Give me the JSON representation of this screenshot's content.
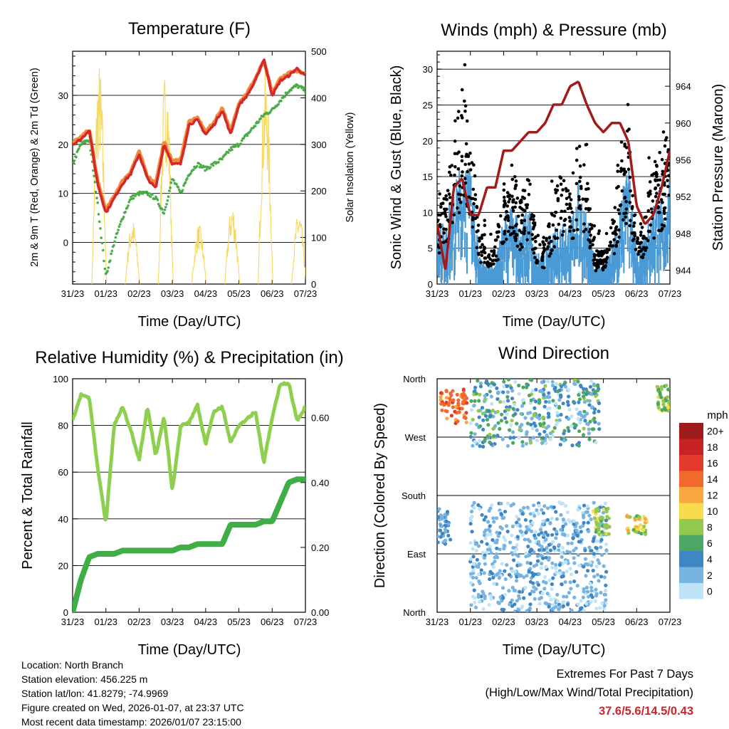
{
  "x_tick_labels": [
    "31/23",
    "01/23",
    "02/23",
    "03/23",
    "04/23",
    "05/23",
    "06/23",
    "07/23"
  ],
  "x_axis_label": "Time (Day/UTC)",
  "colors": {
    "temp_2m": "#d62828",
    "temp_9m": "#f08a3c",
    "dewpoint": "#4aad48",
    "solar": "#f6d860",
    "wind_sonic": "#4a9ad6",
    "gust": "#000000",
    "pressure": "#a11b1b",
    "rh": "#8ecf50",
    "precip": "#3fae46"
  },
  "panels": {
    "temperature": {
      "title": "Temperature (F)",
      "left_label": "2m & 9m T (Red, Orange) & 2m Td (Green)",
      "right_label": "Solar Insolation (Yellow)",
      "left_ticks": [
        "0",
        "10",
        "20",
        "30"
      ],
      "right_ticks": [
        "0",
        "100",
        "200",
        "300",
        "400",
        "500"
      ]
    },
    "winds": {
      "title": "Winds (mph) & Pressure (mb)",
      "left_label": "Sonic Wind & Gust (Blue, Black)",
      "right_label": "Station Pressure (Maroon)",
      "left_ticks": [
        "0",
        "5",
        "10",
        "15",
        "20",
        "25",
        "30"
      ],
      "right_ticks": [
        "944",
        "948",
        "952",
        "956",
        "960",
        "964"
      ]
    },
    "humidity": {
      "title": "Relative Humidity (%) & Precipitation (in)",
      "left_label": "Percent & Total Rainfall",
      "left_ticks": [
        "0",
        "20",
        "40",
        "60",
        "80",
        "100"
      ],
      "right_ticks": [
        "0.00",
        "0.20",
        "0.40",
        "0.60"
      ]
    },
    "direction": {
      "title": "Wind Direction",
      "left_label": "Direction (Colored By Speed)",
      "left_ticks": [
        "North",
        "East",
        "South",
        "West",
        "North"
      ]
    }
  },
  "legend": {
    "unit": "mph",
    "labels": [
      "20+",
      "18",
      "16",
      "14",
      "12",
      "10",
      "8",
      "6",
      "4",
      "2",
      "0"
    ],
    "colors": [
      "#9e1b1b",
      "#c72323",
      "#e33a2c",
      "#f2692e",
      "#f8a640",
      "#f7dc4c",
      "#93c94f",
      "#4ca764",
      "#3e86c4",
      "#78b4e2",
      "#bfe4f8"
    ]
  },
  "info": {
    "location": "Location: North Branch",
    "elevation": "Station elevation: 456.225 m",
    "latlon": "Station lat/lon: 41.8279; -74.9969",
    "created": "Figure created on Wed, 2026-01-07, at 23:37 UTC",
    "recent": "Most recent data timestamp: 2026/01/07 23:15:00"
  },
  "extremes": {
    "title": "Extremes For Past 7 Days",
    "subtitle": "(High/Low/Max Wind/Total Precipitation)",
    "values": "37.6/5.6/14.5/0.43"
  },
  "chart_data": [
    {
      "type": "line",
      "title": "Temperature (F)",
      "xlabel": "Time (Day/UTC)",
      "ylabel": "2m & 9m T (Red, Orange) & 2m Td (Green)",
      "ylabel_right": "Solar Insolation (Yellow)",
      "x": [
        0,
        0.25,
        0.5,
        0.75,
        1,
        1.25,
        1.5,
        1.75,
        2,
        2.25,
        2.5,
        2.75,
        3,
        3.25,
        3.5,
        3.75,
        4,
        4.25,
        4.5,
        4.75,
        5,
        5.25,
        5.5,
        5.75,
        6,
        6.25,
        6.5,
        6.75,
        7
      ],
      "xlim": [
        0,
        7
      ],
      "ylim": [
        -8.5,
        39
      ],
      "ylim_right": [
        0,
        500
      ],
      "series": [
        {
          "name": "2m T",
          "values": [
            20,
            21,
            23,
            12,
            6,
            9,
            12,
            14,
            18,
            13,
            11,
            20,
            16,
            16,
            24,
            25,
            22,
            24,
            27,
            22,
            28,
            30,
            33,
            37.5,
            30,
            33,
            34,
            35.5,
            34
          ]
        },
        {
          "name": "9m T",
          "values": [
            20.3,
            21.5,
            23,
            12.5,
            6.5,
            9.5,
            12.5,
            14.5,
            18.5,
            13.5,
            12,
            20.5,
            16.5,
            17,
            24.5,
            25.5,
            22.5,
            24.5,
            27.5,
            22.5,
            28.5,
            30.5,
            33.5,
            37,
            30.5,
            33.5,
            34.5,
            35,
            34.5
          ]
        },
        {
          "name": "2m Td",
          "values": [
            16,
            20,
            21,
            8,
            -7,
            0,
            5,
            9,
            10,
            10,
            9,
            6,
            13,
            10,
            14,
            16,
            15,
            16,
            17,
            19,
            20,
            22,
            24,
            26,
            27,
            29,
            31,
            32,
            31
          ]
        }
      ],
      "solar": {
        "name": "Solar Insolation",
        "peak_days": [
          0.8,
          1.8,
          2.8,
          3.8,
          4.8,
          5.8,
          6.8
        ],
        "peaks": [
          480,
          140,
          470,
          130,
          175,
          460,
          160
        ],
        "units": "W/m2"
      }
    },
    {
      "type": "scatter",
      "title": "Winds (mph) & Pressure (mb)",
      "xlabel": "Time (Day/UTC)",
      "ylabel": "Sonic Wind & Gust (Blue, Black)",
      "ylabel_right": "Station Pressure (Maroon)",
      "x": [
        0,
        0.25,
        0.5,
        0.75,
        1,
        1.25,
        1.5,
        1.75,
        2,
        2.25,
        2.5,
        2.75,
        3,
        3.25,
        3.5,
        3.75,
        4,
        4.25,
        4.5,
        4.75,
        5,
        5.25,
        5.5,
        5.75,
        6,
        6.25,
        6.5,
        6.75,
        7
      ],
      "xlim": [
        0,
        7
      ],
      "ylim": [
        0,
        32.5
      ],
      "ylim_right": [
        942.5,
        967.8
      ],
      "series": [
        {
          "name": "Sonic Wind",
          "values": [
            5,
            7,
            9,
            13,
            11,
            4,
            2,
            2,
            7,
            8,
            6,
            8,
            3,
            3,
            6,
            7,
            6,
            10,
            7,
            2,
            2,
            4,
            8,
            12,
            3,
            5,
            8,
            9,
            11
          ]
        },
        {
          "name": "Gust",
          "values": [
            8,
            11,
            18,
            24,
            20,
            7,
            4,
            5,
            12,
            14,
            10,
            14,
            5,
            5,
            11,
            13,
            11,
            17,
            13,
            4,
            4,
            7,
            13,
            20,
            6,
            9,
            14,
            16,
            19
          ]
        },
        {
          "name": "Station Pressure",
          "values": [
            949,
            944,
            953,
            954,
            950,
            950,
            953,
            953,
            957,
            957,
            958,
            959,
            959,
            960,
            962,
            962,
            964,
            964.5,
            962,
            960,
            959,
            960,
            960,
            958,
            951,
            949,
            950,
            953,
            957
          ]
        }
      ]
    },
    {
      "type": "line",
      "title": "Relative Humidity (%) & Precipitation (in)",
      "xlabel": "Time (Day/UTC)",
      "ylabel": "Percent & Total Rainfall",
      "x": [
        0,
        0.25,
        0.5,
        0.75,
        1,
        1.25,
        1.5,
        1.75,
        2,
        2.25,
        2.5,
        2.75,
        3,
        3.25,
        3.5,
        3.75,
        4,
        4.25,
        4.5,
        4.75,
        5,
        5.25,
        5.5,
        5.75,
        6,
        6.25,
        6.5,
        6.75,
        7
      ],
      "xlim": [
        0,
        7
      ],
      "ylim": [
        0,
        100
      ],
      "ylim_right": [
        0,
        0.72
      ],
      "series": [
        {
          "name": "Relative Humidity",
          "values": [
            82,
            93,
            92,
            62,
            38,
            80,
            88,
            78,
            65,
            88,
            67,
            84,
            52,
            80,
            81,
            89,
            72,
            86,
            88,
            73,
            80,
            83,
            86,
            64,
            83,
            98,
            98,
            82,
            88
          ]
        },
        {
          "name": "Total Precipitation",
          "values": [
            0,
            0.1,
            0.17,
            0.18,
            0.18,
            0.18,
            0.19,
            0.19,
            0.19,
            0.19,
            0.19,
            0.19,
            0.19,
            0.2,
            0.2,
            0.21,
            0.21,
            0.21,
            0.21,
            0.27,
            0.27,
            0.27,
            0.27,
            0.28,
            0.28,
            0.34,
            0.4,
            0.41,
            0.41
          ]
        }
      ]
    },
    {
      "type": "scatter",
      "title": "Wind Direction",
      "xlabel": "Time (Day/UTC)",
      "ylabel": "Direction (Colored By Speed)",
      "xlim": [
        0,
        7
      ],
      "ylim": [
        0,
        360
      ],
      "clusters": [
        {
          "x_range": [
            0.1,
            0.9
          ],
          "direction": [
            290,
            345
          ],
          "speed": "12-16"
        },
        {
          "x_range": [
            0.0,
            0.4
          ],
          "direction": [
            105,
            160
          ],
          "speed": "2-4"
        },
        {
          "x_range": [
            1.0,
            4.9
          ],
          "direction": [
            255,
            360
          ],
          "speed": "0-8"
        },
        {
          "x_range": [
            1.0,
            5.1
          ],
          "direction": [
            0,
            170
          ],
          "speed": "0-4"
        },
        {
          "x_range": [
            4.7,
            5.2
          ],
          "direction": [
            120,
            160
          ],
          "speed": "6-10"
        },
        {
          "x_range": [
            5.7,
            6.3
          ],
          "direction": [
            120,
            150
          ],
          "speed": "6-12"
        },
        {
          "x_range": [
            6.6,
            7.0
          ],
          "direction": [
            310,
            350
          ],
          "speed": "6-10"
        }
      ]
    }
  ]
}
